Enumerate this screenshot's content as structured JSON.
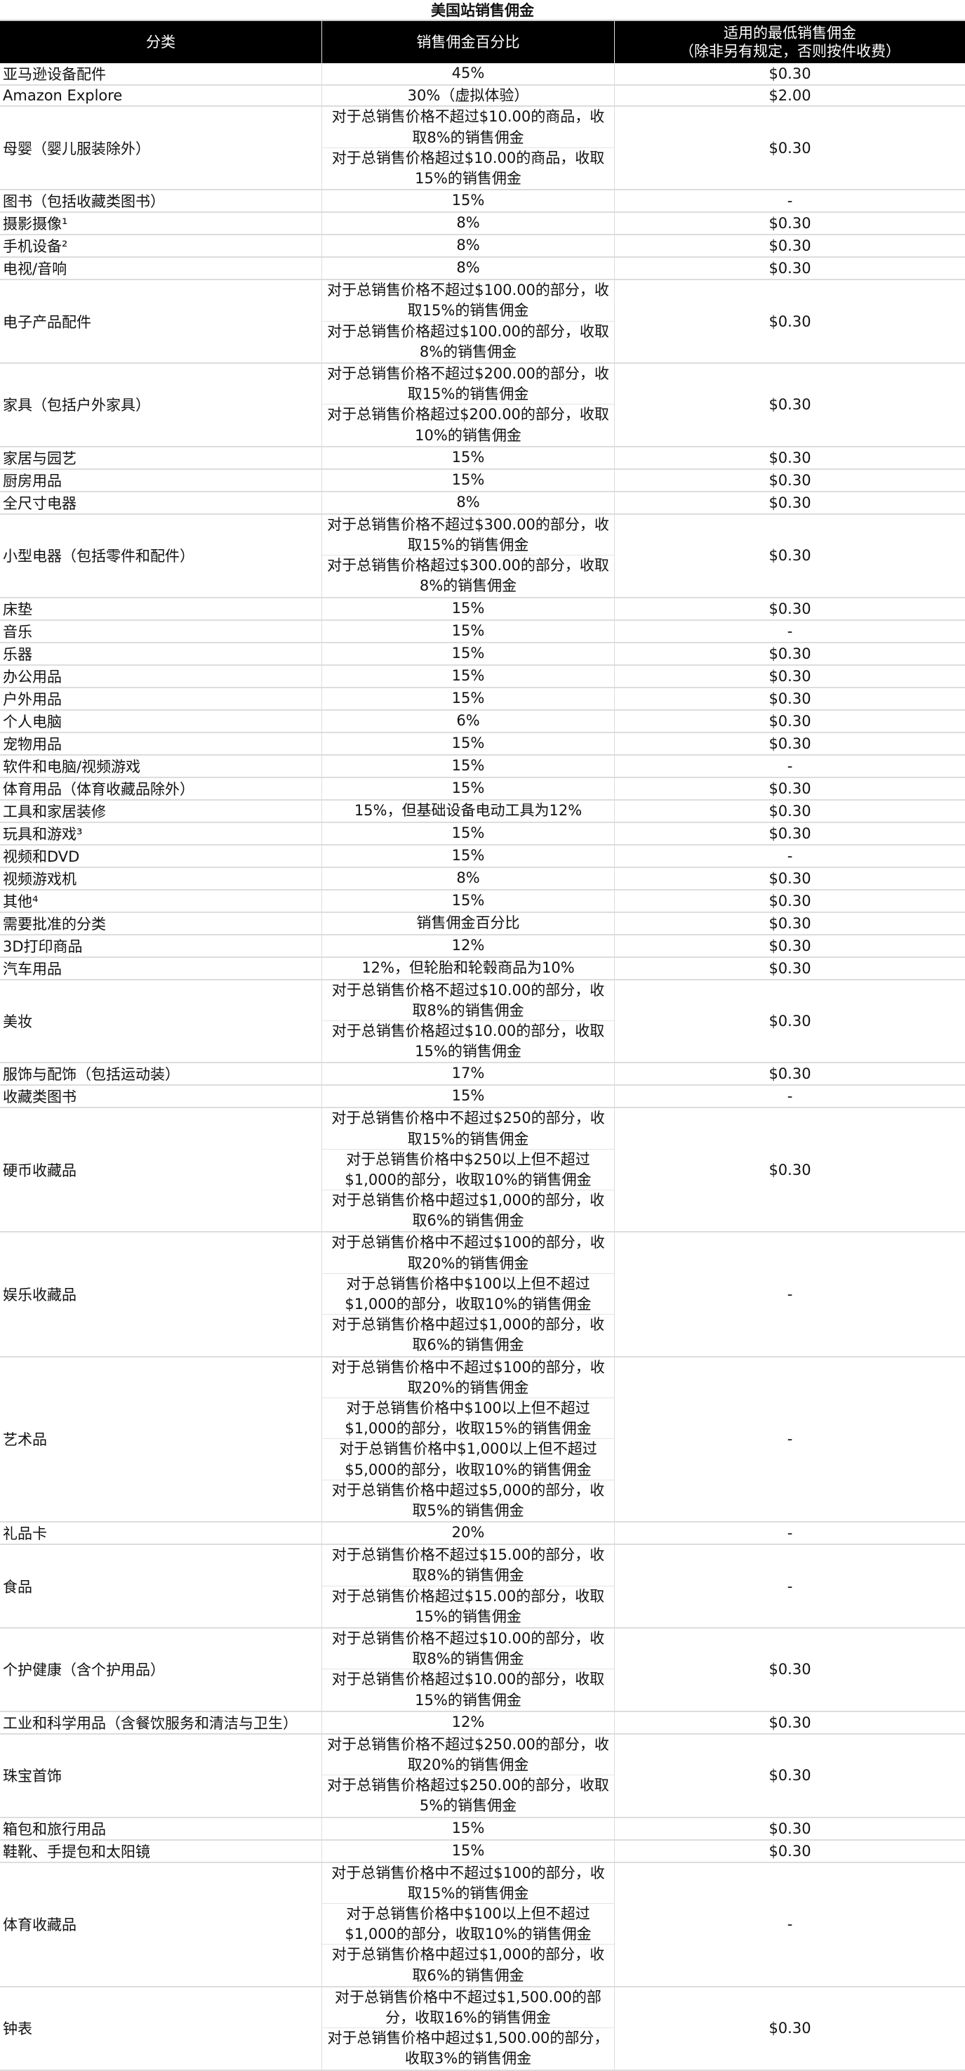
{
  "title": "美国站销售佣金",
  "headers": {
    "category": "分类",
    "rate": "销售佣金百分比",
    "min_line1": "适用的最低销售佣金",
    "min_line2": "（除非另有规定，否则按件收费）"
  },
  "rows": [
    {
      "category": "亚马逊设备配件",
      "rates": [
        "45%"
      ],
      "min": "$0.30"
    },
    {
      "category": "Amazon Explore",
      "rates": [
        "30%（虚拟体验）"
      ],
      "min": "$2.00"
    },
    {
      "category": "母婴（婴儿服装除外）",
      "rates": [
        "对于总销售价格不超过$10.00的商品，收取8%的销售佣金",
        "对于总销售价格超过$10.00的商品，收取15%的销售佣金"
      ],
      "min": "$0.30"
    },
    {
      "category": "图书（包括收藏类图书）",
      "rates": [
        "15%"
      ],
      "min": "-"
    },
    {
      "category": "摄影摄像¹",
      "rates": [
        "8%"
      ],
      "min": "$0.30"
    },
    {
      "category": "手机设备²",
      "rates": [
        "8%"
      ],
      "min": "$0.30"
    },
    {
      "category": "电视/音响",
      "rates": [
        "8%"
      ],
      "min": "$0.30"
    },
    {
      "category": "电子产品配件",
      "rates": [
        "对于总销售价格不超过$100.00的部分，收取15%的销售佣金",
        "对于总销售价格超过$100.00的部分，收取8%的销售佣金"
      ],
      "min": "$0.30"
    },
    {
      "category": "家具（包括户外家具）",
      "rates": [
        "对于总销售价格不超过$200.00的部分，收取15%的销售佣金",
        "对于总销售价格超过$200.00的部分，收取10%的销售佣金"
      ],
      "min": "$0.30"
    },
    {
      "category": "家居与园艺",
      "rates": [
        "15%"
      ],
      "min": "$0.30"
    },
    {
      "category": "厨房用品",
      "rates": [
        "15%"
      ],
      "min": "$0.30"
    },
    {
      "category": "全尺寸电器",
      "rates": [
        "8%"
      ],
      "min": "$0.30"
    },
    {
      "category": "小型电器（包括零件和配件）",
      "rates": [
        "对于总销售价格不超过$300.00的部分，收取15%的销售佣金",
        "对于总销售价格超过$300.00的部分，收取8%的销售佣金"
      ],
      "min": "$0.30"
    },
    {
      "category": "床垫",
      "rates": [
        "15%"
      ],
      "min": "$0.30"
    },
    {
      "category": "音乐",
      "rates": [
        "15%"
      ],
      "min": "-"
    },
    {
      "category": "乐器",
      "rates": [
        "15%"
      ],
      "min": "$0.30"
    },
    {
      "category": "办公用品",
      "rates": [
        "15%"
      ],
      "min": "$0.30"
    },
    {
      "category": "户外用品",
      "rates": [
        "15%"
      ],
      "min": "$0.30"
    },
    {
      "category": "个人电脑",
      "rates": [
        "6%"
      ],
      "min": "$0.30"
    },
    {
      "category": "宠物用品",
      "rates": [
        "15%"
      ],
      "min": "$0.30"
    },
    {
      "category": "软件和电脑/视频游戏",
      "rates": [
        "15%"
      ],
      "min": "-"
    },
    {
      "category": "体育用品（体育收藏品除外）",
      "rates": [
        "15%"
      ],
      "min": "$0.30"
    },
    {
      "category": "工具和家居装修",
      "rates": [
        "15%，但基础设备电动工具为12%"
      ],
      "min": "$0.30"
    },
    {
      "category": "玩具和游戏³",
      "rates": [
        "15%"
      ],
      "min": "$0.30"
    },
    {
      "category": "视频和DVD",
      "rates": [
        "15%"
      ],
      "min": "-"
    },
    {
      "category": "视频游戏机",
      "rates": [
        "8%"
      ],
      "min": "$0.30"
    },
    {
      "category": "其他⁴",
      "rates": [
        "15%"
      ],
      "min": "$0.30"
    },
    {
      "category": "需要批准的分类",
      "rates": [
        "销售佣金百分比"
      ],
      "min": "$0.30"
    },
    {
      "category": "3D打印商品",
      "rates": [
        "12%"
      ],
      "min": "$0.30"
    },
    {
      "category": "汽车用品",
      "rates": [
        "12%，但轮胎和轮毂商品为10%"
      ],
      "min": "$0.30"
    },
    {
      "category": "美妆",
      "rates": [
        "对于总销售价格不超过$10.00的部分，收取8%的销售佣金",
        "对于总销售价格超过$10.00的部分，收取15%的销售佣金"
      ],
      "min": "$0.30"
    },
    {
      "category": "服饰与配饰（包括运动装）",
      "rates": [
        "17%"
      ],
      "min": "$0.30"
    },
    {
      "category": "收藏类图书",
      "rates": [
        "15%"
      ],
      "min": "-"
    },
    {
      "category": "硬币收藏品",
      "rates": [
        "对于总销售价格中不超过$250的部分，收取15%的销售佣金",
        "对于总销售价格中$250以上但不超过$1,000的部分，收取10%的销售佣金",
        "对于总销售价格中超过$1,000的部分，收取6%的销售佣金"
      ],
      "min": "$0.30"
    },
    {
      "category": "娱乐收藏品",
      "rates": [
        "对于总销售价格中不超过$100的部分，收取20%的销售佣金",
        "对于总销售价格中$100以上但不超过$1,000的部分，收取10%的销售佣金",
        "对于总销售价格中超过$1,000的部分，收取6%的销售佣金"
      ],
      "min": "-"
    },
    {
      "category": "艺术品",
      "rates": [
        "对于总销售价格中不超过$100的部分，收取20%的销售佣金",
        "对于总销售价格中$100以上但不超过$1,000的部分，收取15%的销售佣金",
        "对于总销售价格中$1,000以上但不超过$5,000的部分，收取10%的销售佣金",
        "对于总销售价格中超过$5,000的部分，收取5%的销售佣金"
      ],
      "min": "-"
    },
    {
      "category": "礼品卡",
      "rates": [
        "20%"
      ],
      "min": "-"
    },
    {
      "category": "食品",
      "rates": [
        "对于总销售价格不超过$15.00的部分，收取8%的销售佣金",
        "对于总销售价格超过$15.00的部分，收取15%的销售佣金"
      ],
      "min": "-"
    },
    {
      "category": "个护健康（含个护用品）",
      "rates": [
        "对于总销售价格不超过$10.00的部分，收取8%的销售佣金",
        "对于总销售价格超过$10.00的部分，收取15%的销售佣金"
      ],
      "min": "$0.30"
    },
    {
      "category": "工业和科学用品（含餐饮服务和清洁与卫生）",
      "rates": [
        "12%"
      ],
      "min": "$0.30"
    },
    {
      "category": "珠宝首饰",
      "rates": [
        "对于总销售价格不超过$250.00的部分，收取20%的销售佣金",
        "对于总销售价格超过$250.00的部分，收取5%的销售佣金"
      ],
      "min": "$0.30"
    },
    {
      "category": "箱包和旅行用品",
      "rates": [
        "15%"
      ],
      "min": "$0.30"
    },
    {
      "category": "鞋靴、手提包和太阳镜",
      "rates": [
        "15%"
      ],
      "min": "$0.30"
    },
    {
      "category": "体育收藏品",
      "rates": [
        "对于总销售价格中不超过$100的部分，收取15%的销售佣金",
        "对于总销售价格中$100以上但不超过$1,000的部分，收取10%的销售佣金",
        "对于总销售价格中超过$1,000的部分，收取6%的销售佣金"
      ],
      "min": "-"
    },
    {
      "category": "钟表",
      "rates": [
        "对于总销售价格中不超过$1,500.00的部分，收取16%的销售佣金",
        "对于总销售价格中超过$1,500.00的部分，收取3%的销售佣金"
      ],
      "min": "$0.30"
    }
  ]
}
